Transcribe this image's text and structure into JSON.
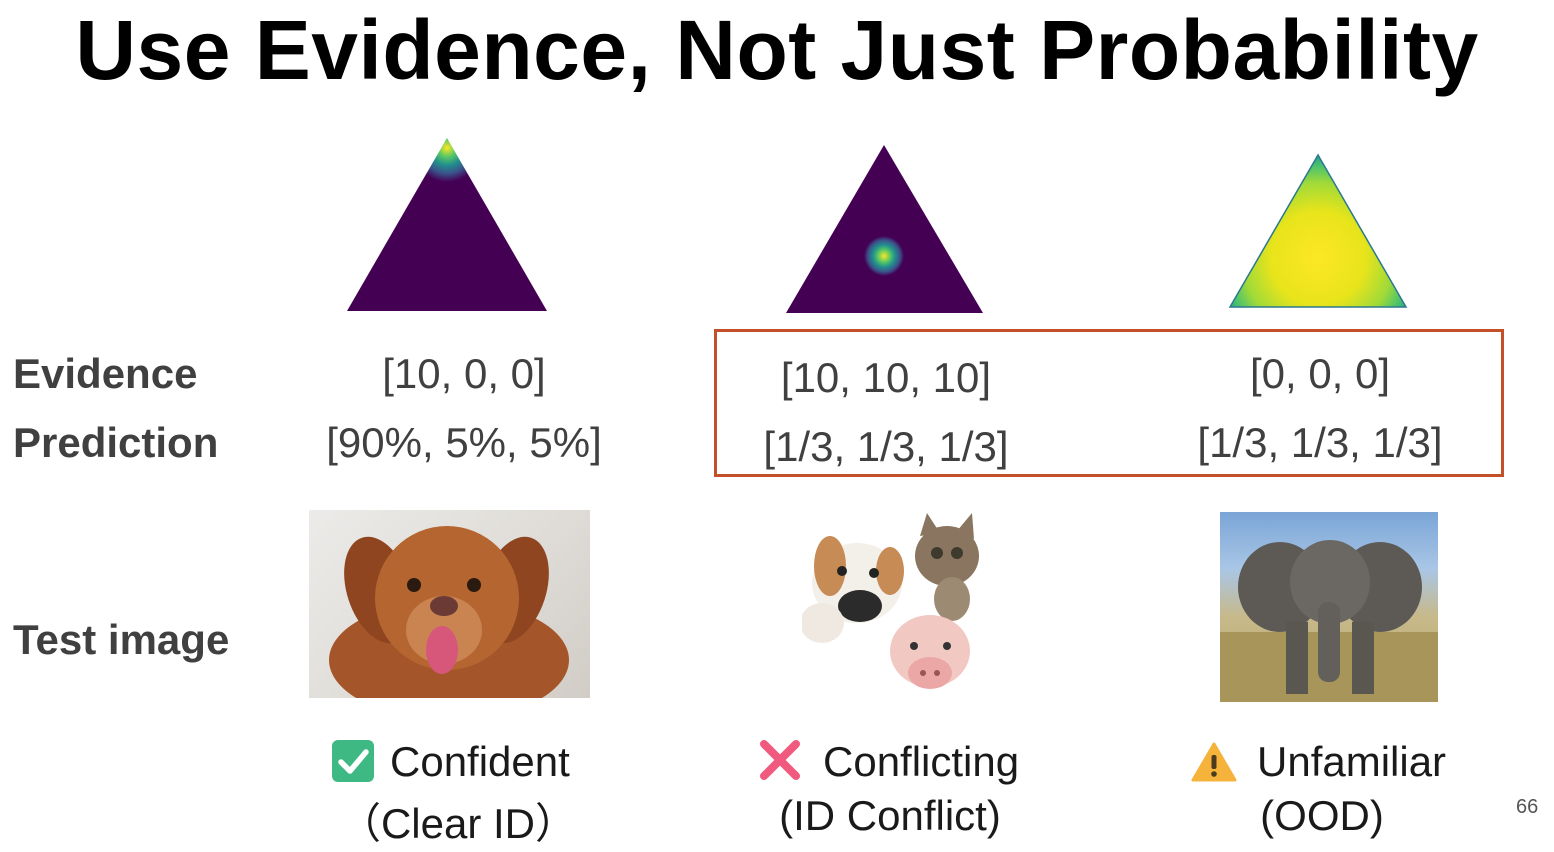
{
  "slide": {
    "title": "Use Evidence, Not Just Probability",
    "page_number": "66"
  },
  "row_labels": {
    "evidence": "Evidence",
    "prediction": "Prediction",
    "test_image": "Test image"
  },
  "columns": [
    {
      "evidence": "[10, 0, 0]",
      "prediction": "[90%, 5%, 5%]",
      "image_icon": "dog-photo",
      "status_icon": "check-mark-icon",
      "status_line1": "Confident",
      "status_line2": "（Clear ID）"
    },
    {
      "evidence": "[10, 10, 10]",
      "prediction": "[1/3, 1/3, 1/3]",
      "image_icon": "dog-cat-pig-photo",
      "status_icon": "cross-mark-icon",
      "status_line1": "Conflicting",
      "status_line2": "(ID Conflict)"
    },
    {
      "evidence": "[0, 0, 0]",
      "prediction": "[1/3, 1/3, 1/3]",
      "image_icon": "elephant-photo",
      "status_icon": "warning-icon",
      "status_line1": "Unfamiliar",
      "status_line2": "(OOD)"
    }
  ],
  "colors": {
    "highlight_box": "#c4502a",
    "simplex_dark": "#440154",
    "simplex_bright": "#fde725"
  }
}
